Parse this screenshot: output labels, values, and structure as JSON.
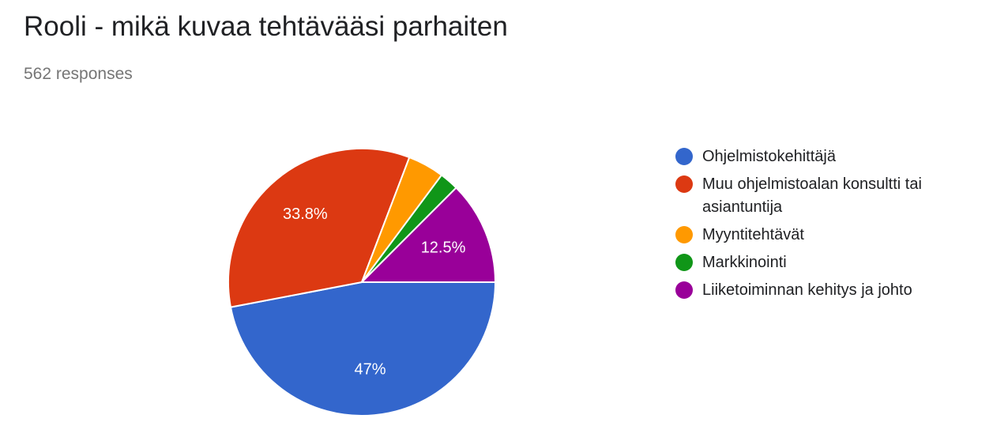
{
  "title": "Rooli - mikä kuvaa tehtävääsi parhaiten",
  "subtitle": "562 responses",
  "chart_data": {
    "type": "pie",
    "title": "Rooli - mikä kuvaa tehtävääsi parhaiten",
    "subtitle": "562 responses",
    "legend_position": "right",
    "start_angle_deg": 90,
    "direction": "counterclockwise",
    "slices": [
      {
        "name": "Ohjelmistokehittäjä",
        "value": 47.0,
        "label": "47%",
        "color": "#3366cc"
      },
      {
        "name": "Muu ohjelmistoalan konsultti tai asiantuntija",
        "value": 33.8,
        "label": "33.8%",
        "color": "#dc3912"
      },
      {
        "name": "Myyntitehtävät",
        "value": 4.4,
        "label": "",
        "color": "#ff9900"
      },
      {
        "name": "Markkinointi",
        "value": 2.3,
        "label": "",
        "color": "#109618"
      },
      {
        "name": "Liiketoiminnan kehitys ja johto",
        "value": 12.5,
        "label": "12.5%",
        "color": "#990099"
      }
    ]
  }
}
